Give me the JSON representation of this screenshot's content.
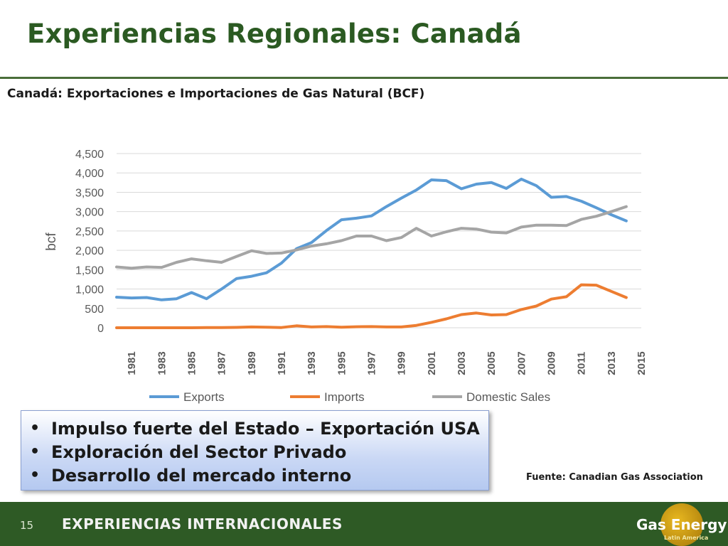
{
  "slide": {
    "title": "Experiencias Regionales: Canadá",
    "chart_heading": "Canadá: Exportaciones e Importaciones de Gas Natural (BCF)",
    "bullets": [
      "Impulso fuerte del Estado – Exportación USA",
      "Exploración del Sector Privado",
      "Desarrollo del mercado interno"
    ],
    "bullet_symbol": "•",
    "source": "Fuente: Canadian Gas Association",
    "page_number": "15",
    "footer_label": "EXPERIENCIAS INTERNACIONALES",
    "brand_name": "Gas Energy",
    "brand_sub": "Latin America"
  },
  "colors": {
    "title": "#2b5a22",
    "footer": "#2e5a25",
    "exports": "#5b9bd5",
    "imports": "#ed7d31",
    "domestic": "#a5a5a5"
  },
  "chart_data": {
    "type": "line",
    "title": "Canadá: Exportaciones e Importaciones de Gas Natural (BCF)",
    "xlabel": "",
    "ylabel": "bcf",
    "ylim": [
      0,
      4500
    ],
    "yticks": [
      0,
      500,
      1000,
      1500,
      2000,
      2500,
      3000,
      3500,
      4000,
      4500
    ],
    "ytick_labels": [
      "0",
      "500",
      "1,000",
      "1,500",
      "2,000",
      "2,500",
      "3,000",
      "3,500",
      "4,000",
      "4,500"
    ],
    "xlim": [
      1980,
      2015
    ],
    "xticks": [
      1981,
      1983,
      1985,
      1987,
      1989,
      1991,
      1993,
      1995,
      1997,
      1999,
      2001,
      2003,
      2005,
      2007,
      2009,
      2011,
      2013,
      2015
    ],
    "grid": true,
    "legend": "bottom",
    "x": [
      1980,
      1981,
      1982,
      1983,
      1984,
      1985,
      1986,
      1987,
      1988,
      1989,
      1990,
      1991,
      1992,
      1993,
      1994,
      1995,
      1996,
      1997,
      1998,
      1999,
      2000,
      2001,
      2002,
      2003,
      2004,
      2005,
      2006,
      2007,
      2008,
      2009,
      2010,
      2011,
      2012,
      2013,
      2014
    ],
    "series": [
      {
        "name": "Exports",
        "color": "#5b9bd5",
        "values": [
          790,
          770,
          780,
          720,
          750,
          910,
          750,
          1000,
          1270,
          1330,
          1420,
          1670,
          2040,
          2200,
          2510,
          2790,
          2830,
          2890,
          3130,
          3350,
          3560,
          3820,
          3800,
          3590,
          3710,
          3750,
          3600,
          3840,
          3670,
          3370,
          3390,
          3270,
          3100,
          2920,
          2760
        ]
      },
      {
        "name": "Imports",
        "color": "#ed7d31",
        "values": [
          0,
          0,
          0,
          0,
          0,
          0,
          5,
          5,
          10,
          20,
          15,
          5,
          50,
          20,
          30,
          15,
          25,
          30,
          20,
          20,
          60,
          140,
          230,
          340,
          380,
          330,
          340,
          470,
          560,
          740,
          800,
          1110,
          1100,
          940,
          780
        ]
      },
      {
        "name": "Domestic Sales",
        "color": "#a5a5a5",
        "values": [
          1570,
          1540,
          1570,
          1560,
          1690,
          1780,
          1730,
          1690,
          1840,
          1990,
          1920,
          1930,
          2010,
          2110,
          2170,
          2250,
          2370,
          2370,
          2250,
          2330,
          2570,
          2370,
          2480,
          2570,
          2550,
          2470,
          2450,
          2600,
          2650,
          2650,
          2640,
          2800,
          2880,
          3000,
          3130
        ]
      }
    ]
  }
}
